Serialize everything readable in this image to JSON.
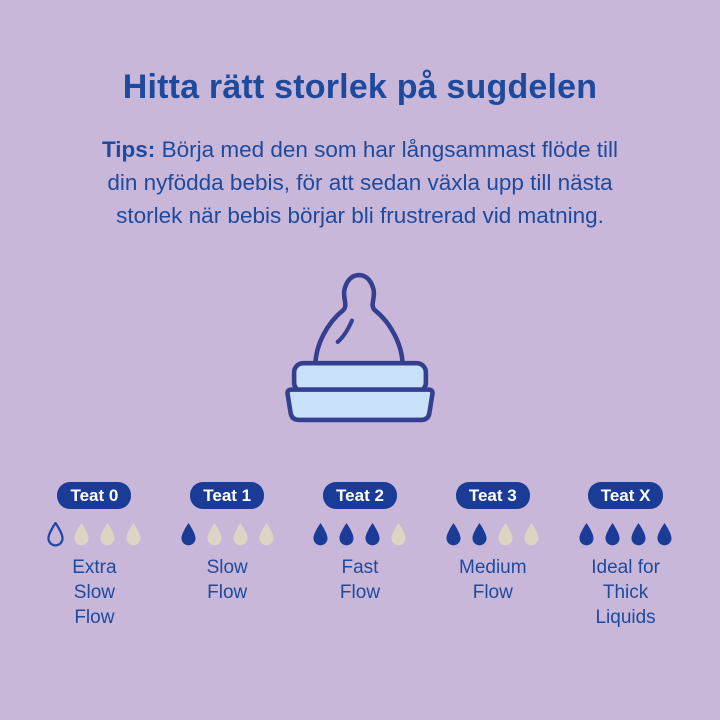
{
  "page": {
    "background_color": "#c9b7d9"
  },
  "colors": {
    "text_blue": "#1e4a9e",
    "badge_navy": "#1b3c96",
    "droplet_filled": "#1b3c96",
    "droplet_empty_beige": "#ddd4c3",
    "badge_text": "#ffffff",
    "illustration_stroke": "#353f90",
    "illustration_fill_light_blue": "#c9e1f8"
  },
  "header": {
    "title": "Hitta rätt storlek på sugdelen"
  },
  "tips": {
    "label": "Tips:",
    "lines": [
      "Börja med den som har långsammast flöde till",
      "din nyfödda bebis, för att sedan växla upp till nästa",
      "storlek när bebis börjar bli frustrerad vid matning."
    ]
  },
  "illustration": {
    "name": "bottle-teat-illustration"
  },
  "teats": [
    {
      "badge": "Teat 0",
      "drops": [
        "outline",
        "empty",
        "empty",
        "empty"
      ],
      "label": "Extra\nSlow\nFlow"
    },
    {
      "badge": "Teat 1",
      "drops": [
        "filled",
        "empty",
        "empty",
        "empty"
      ],
      "label": "Slow\nFlow"
    },
    {
      "badge": "Teat 2",
      "drops": [
        "filled",
        "filled",
        "filled",
        "empty"
      ],
      "label": "Fast\nFlow"
    },
    {
      "badge": "Teat 3",
      "drops": [
        "filled",
        "filled",
        "empty",
        "empty"
      ],
      "label": "Medium\nFlow"
    },
    {
      "badge": "Teat X",
      "drops": [
        "filled",
        "filled",
        "filled",
        "filled"
      ],
      "label": "Ideal for\nThick\nLiquids"
    }
  ]
}
